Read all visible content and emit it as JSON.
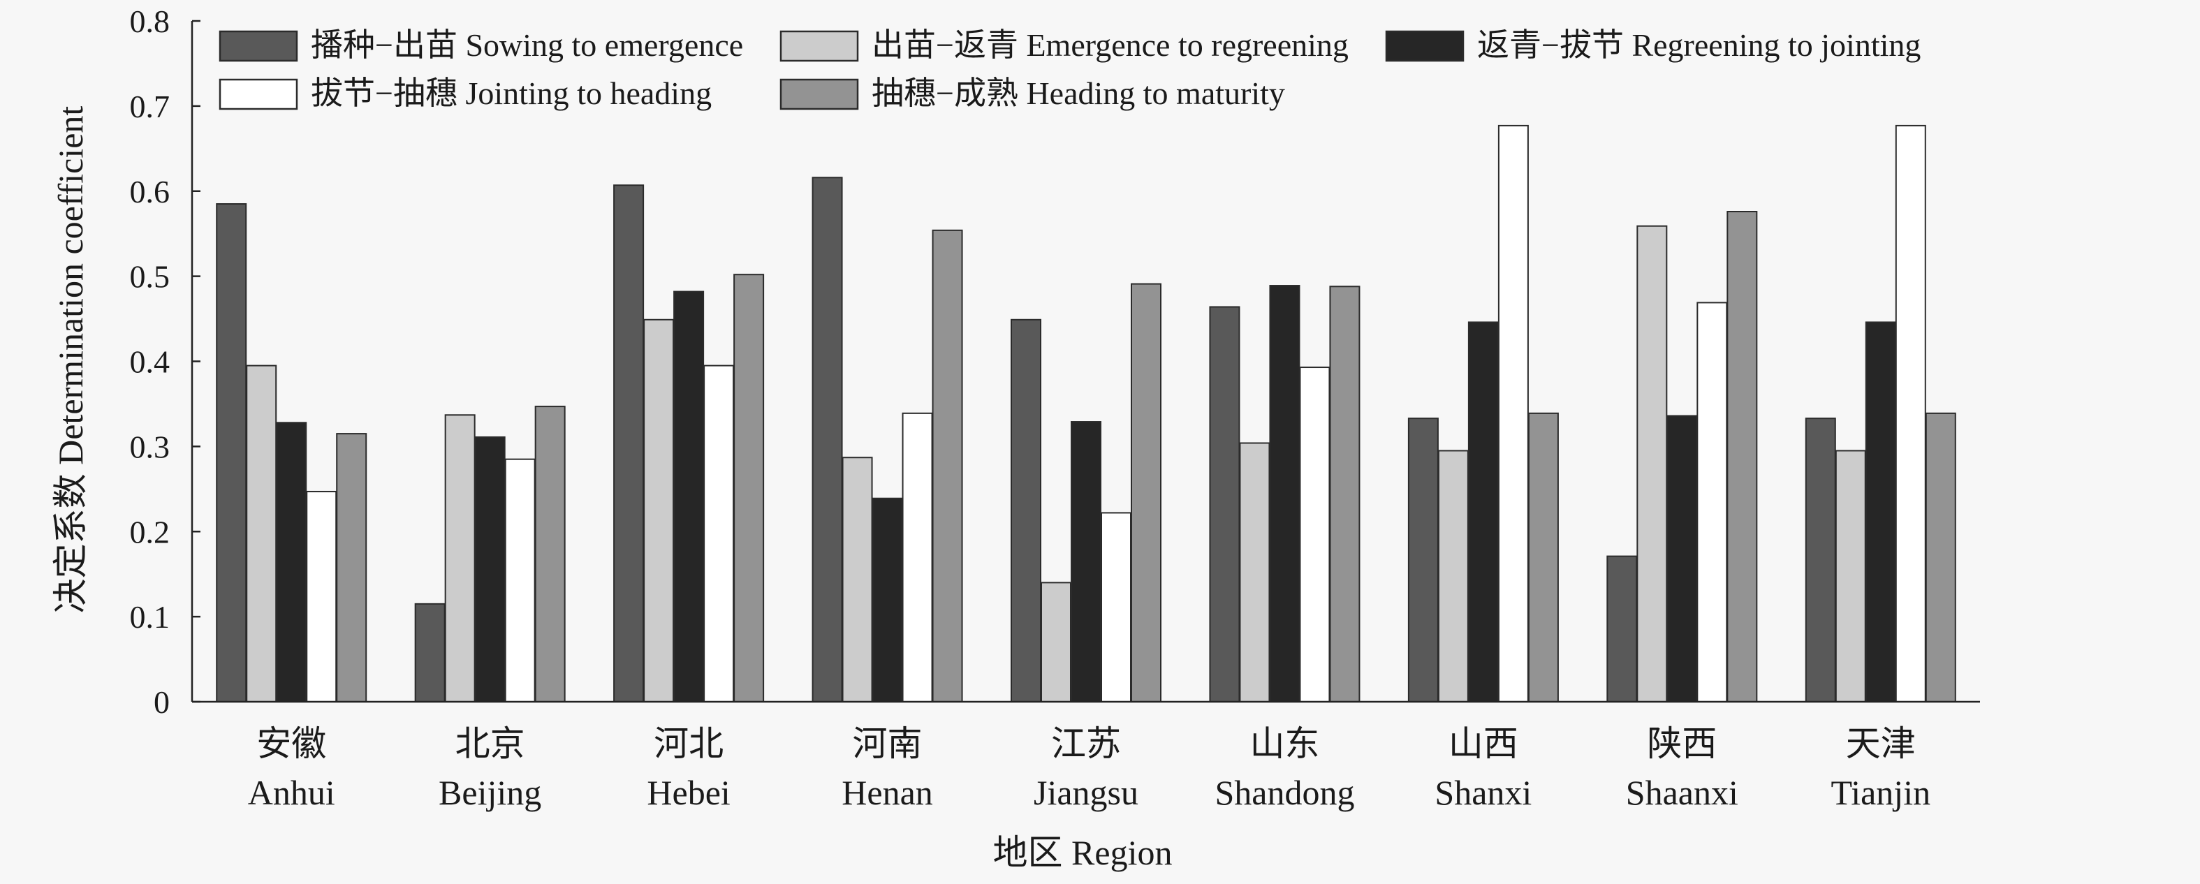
{
  "chart_data": {
    "type": "bar",
    "ylabel": "决定系数 Determination coefficient",
    "xlabel": "地区 Region",
    "ylim": [
      0,
      0.8
    ],
    "yticks": [
      {
        "value": 0,
        "label": "0"
      },
      {
        "value": 0.1,
        "label": "0.1"
      },
      {
        "value": 0.2,
        "label": "0.2"
      },
      {
        "value": 0.3,
        "label": "0.3"
      },
      {
        "value": 0.4,
        "label": "0.4"
      },
      {
        "value": 0.5,
        "label": "0.5"
      },
      {
        "value": 0.6,
        "label": "0.6"
      },
      {
        "value": 0.7,
        "label": "0.7"
      },
      {
        "value": 0.8,
        "label": "0.8"
      }
    ],
    "grid": false,
    "legend_position": "top",
    "categories": [
      {
        "zh": "安徽",
        "en": "Anhui"
      },
      {
        "zh": "北京",
        "en": "Beijing"
      },
      {
        "zh": "河北",
        "en": "Hebei"
      },
      {
        "zh": "河南",
        "en": "Henan"
      },
      {
        "zh": "江苏",
        "en": "Jiangsu"
      },
      {
        "zh": "山东",
        "en": "Shandong"
      },
      {
        "zh": "山西",
        "en": "Shanxi"
      },
      {
        "zh": "陕西",
        "en": "Shaanxi"
      },
      {
        "zh": "天津",
        "en": "Tianjin"
      }
    ],
    "series": [
      {
        "name": "播种−出苗 Sowing to emergence",
        "color": "#595959",
        "values": [
          0.585,
          0.115,
          0.607,
          0.616,
          0.449,
          0.464,
          0.333,
          0.171,
          0.333
        ]
      },
      {
        "name": "出苗−返青 Emergence to regreening",
        "color": "#cccccc",
        "values": [
          0.395,
          0.337,
          0.449,
          0.287,
          0.14,
          0.304,
          0.295,
          0.559,
          0.295
        ]
      },
      {
        "name": "返青−拔节 Regreening to jointing",
        "color": "#262626",
        "values": [
          0.328,
          0.311,
          0.482,
          0.239,
          0.329,
          0.489,
          0.446,
          0.336,
          0.446
        ]
      },
      {
        "name": "拔节−抽穗 Jointing to heading",
        "color": "#ffffff",
        "values": [
          0.247,
          0.285,
          0.395,
          0.339,
          0.222,
          0.393,
          0.677,
          0.469,
          0.677
        ]
      },
      {
        "name": "抽穗−成熟 Heading to maturity",
        "color": "#939393",
        "values": [
          0.315,
          0.347,
          0.502,
          0.554,
          0.491,
          0.488,
          0.339,
          0.576,
          0.339
        ]
      }
    ]
  }
}
